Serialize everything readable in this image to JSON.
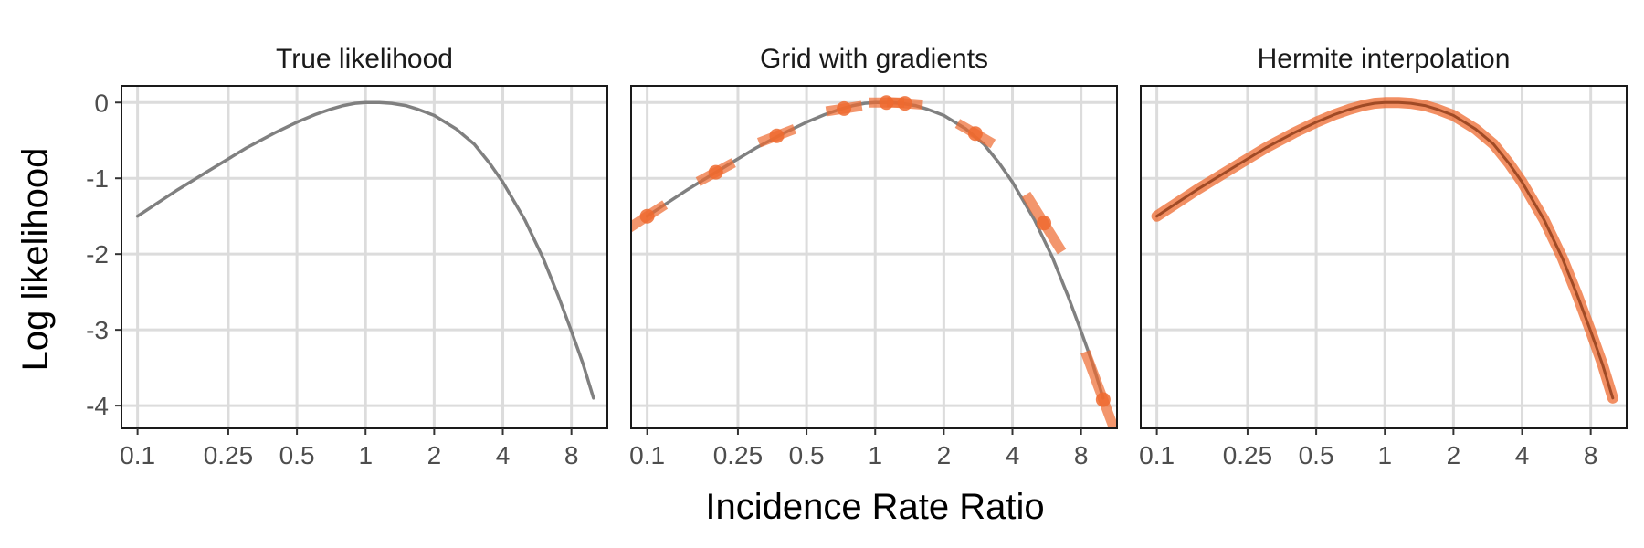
{
  "chart_data": [
    {
      "type": "line",
      "title": "True likelihood",
      "x_scale": "log",
      "xlim": [
        0.085,
        11.5
      ],
      "ylim": [
        -4.3,
        0.22
      ],
      "xticks": [
        0.1,
        0.25,
        0.5,
        1,
        2,
        4,
        8
      ],
      "xtick_labels": [
        "0.1",
        "0.25",
        "0.5",
        "1",
        "2",
        "4",
        "8"
      ],
      "yticks": [
        0,
        -1,
        -2,
        -3,
        -4
      ],
      "ytick_labels": [
        "0",
        "-1",
        "-2",
        "-3",
        "-4"
      ],
      "grid": true,
      "series": [
        {
          "color": "#808080",
          "x": [
            0.1,
            0.15,
            0.2,
            0.3,
            0.4,
            0.5,
            0.6,
            0.7,
            0.8,
            0.9,
            1.0,
            1.15,
            1.3,
            1.5,
            1.7,
            2.0,
            2.5,
            3.0,
            3.5,
            4.0,
            5.0,
            6.0,
            7.0,
            8.0,
            9.0,
            10.0
          ],
          "y": [
            -1.5,
            -1.15,
            -0.92,
            -0.6,
            -0.4,
            -0.26,
            -0.16,
            -0.09,
            -0.04,
            -0.01,
            0.0,
            0.0,
            -0.01,
            -0.04,
            -0.09,
            -0.17,
            -0.35,
            -0.55,
            -0.8,
            -1.05,
            -1.55,
            -2.05,
            -2.55,
            -3.02,
            -3.45,
            -3.9
          ]
        }
      ]
    },
    {
      "type": "scatter",
      "title": "Grid with gradients",
      "x_scale": "log",
      "xlim": [
        0.085,
        11.5
      ],
      "ylim": [
        -4.3,
        0.22
      ],
      "xticks": [
        0.1,
        0.25,
        0.5,
        1,
        2,
        4,
        8
      ],
      "xtick_labels": [
        "0.1",
        "0.25",
        "0.5",
        "1",
        "2",
        "4",
        "8"
      ],
      "yticks": [
        0,
        -1,
        -2,
        -3,
        -4
      ],
      "ytick_labels": [
        "0",
        "-1",
        "-2",
        "-3",
        "-4"
      ],
      "grid": true,
      "series": [
        {
          "color": "#808080",
          "x": [
            0.1,
            0.15,
            0.2,
            0.3,
            0.4,
            0.5,
            0.6,
            0.7,
            0.8,
            0.9,
            1.0,
            1.15,
            1.3,
            1.5,
            1.7,
            2.0,
            2.5,
            3.0,
            3.5,
            4.0,
            5.0,
            6.0,
            7.0,
            8.0,
            9.0,
            10.0
          ],
          "y": [
            -1.5,
            -1.15,
            -0.92,
            -0.6,
            -0.4,
            -0.26,
            -0.16,
            -0.09,
            -0.04,
            -0.01,
            0.0,
            0.0,
            -0.01,
            -0.04,
            -0.09,
            -0.17,
            -0.35,
            -0.55,
            -0.8,
            -1.05,
            -1.55,
            -2.05,
            -2.55,
            -3.02,
            -3.45,
            -3.9
          ]
        },
        {
          "color": "#ee6a2f",
          "points": [
            {
              "x": 0.1,
              "y": -1.5,
              "slope": 0.85
            },
            {
              "x": 0.2,
              "y": -0.92,
              "slope": 0.7
            },
            {
              "x": 0.37,
              "y": -0.44,
              "slope": 0.5
            },
            {
              "x": 0.73,
              "y": -0.08,
              "slope": 0.2
            },
            {
              "x": 1.12,
              "y": 0.0,
              "slope": 0.0
            },
            {
              "x": 1.35,
              "y": -0.01,
              "slope": -0.1
            },
            {
              "x": 2.75,
              "y": -0.41,
              "slope": -0.75
            },
            {
              "x": 5.5,
              "y": -1.59,
              "slope": -2.1
            },
            {
              "x": 10.0,
              "y": -3.92,
              "slope": -3.5
            }
          ]
        }
      ]
    },
    {
      "type": "line",
      "title": "Hermite interpolation",
      "x_scale": "log",
      "xlim": [
        0.085,
        11.5
      ],
      "ylim": [
        -4.3,
        0.22
      ],
      "xticks": [
        0.1,
        0.25,
        0.5,
        1,
        2,
        4,
        8
      ],
      "xtick_labels": [
        "0.1",
        "0.25",
        "0.5",
        "1",
        "2",
        "4",
        "8"
      ],
      "yticks": [
        0,
        -1,
        -2,
        -3,
        -4
      ],
      "ytick_labels": [
        "0",
        "-1",
        "-2",
        "-3",
        "-4"
      ],
      "grid": true,
      "series": [
        {
          "color": "#ee6a2f",
          "x": [
            0.1,
            0.15,
            0.2,
            0.3,
            0.4,
            0.5,
            0.6,
            0.7,
            0.8,
            0.9,
            1.0,
            1.15,
            1.3,
            1.5,
            1.7,
            2.0,
            2.5,
            3.0,
            3.5,
            4.0,
            5.0,
            6.0,
            7.0,
            8.0,
            9.0,
            10.0
          ],
          "y": [
            -1.5,
            -1.15,
            -0.92,
            -0.6,
            -0.4,
            -0.26,
            -0.16,
            -0.09,
            -0.04,
            -0.01,
            0.0,
            0.0,
            -0.01,
            -0.04,
            -0.09,
            -0.17,
            -0.35,
            -0.55,
            -0.8,
            -1.05,
            -1.55,
            -2.05,
            -2.55,
            -3.02,
            -3.45,
            -3.9
          ]
        },
        {
          "color": "#a04a25",
          "x": [
            0.1,
            0.15,
            0.2,
            0.3,
            0.4,
            0.5,
            0.6,
            0.7,
            0.8,
            0.9,
            1.0,
            1.15,
            1.3,
            1.5,
            1.7,
            2.0,
            2.5,
            3.0,
            3.5,
            4.0,
            5.0,
            6.0,
            7.0,
            8.0,
            9.0,
            10.0
          ],
          "y": [
            -1.5,
            -1.15,
            -0.92,
            -0.6,
            -0.4,
            -0.26,
            -0.16,
            -0.09,
            -0.04,
            -0.01,
            0.0,
            0.0,
            -0.01,
            -0.04,
            -0.09,
            -0.17,
            -0.35,
            -0.55,
            -0.8,
            -1.05,
            -1.55,
            -2.05,
            -2.55,
            -3.02,
            -3.45,
            -3.9
          ]
        }
      ]
    }
  ],
  "labels": {
    "xlabel": "Incidence Rate Ratio",
    "ylabel": "Log likelihood"
  }
}
